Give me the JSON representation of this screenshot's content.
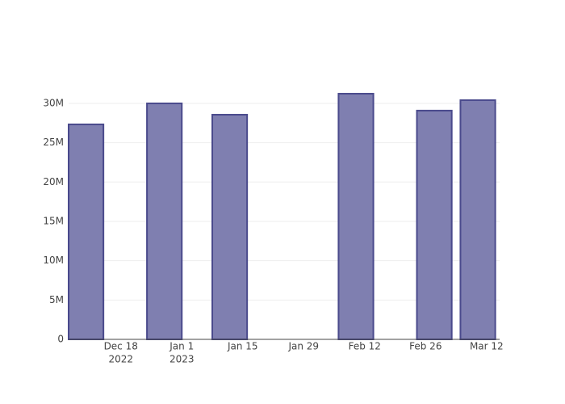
{
  "chart_data": {
    "type": "bar",
    "x": [
      "2022-12-10",
      "2022-12-28",
      "2023-01-12",
      "2023-02-10",
      "2023-02-28",
      "2023-03-10"
    ],
    "values": [
      27330000,
      30000000,
      28560000,
      31230000,
      29080000,
      30410000
    ],
    "color": "#7f7fb0",
    "line_color": "#4a4a8c",
    "xlim": [
      "2022-12-06",
      "2023-03-15"
    ],
    "xticks": [
      {
        "value": "2022-12-18",
        "label": [
          "Dec 18",
          "2022"
        ]
      },
      {
        "value": "2023-01-01",
        "label": [
          "Jan 1",
          "2023"
        ]
      },
      {
        "value": "2023-01-15",
        "label": [
          "Jan 15"
        ]
      },
      {
        "value": "2023-01-29",
        "label": [
          "Jan 29"
        ]
      },
      {
        "value": "2023-02-12",
        "label": [
          "Feb 12"
        ]
      },
      {
        "value": "2023-02-26",
        "label": [
          "Feb 26"
        ]
      },
      {
        "value": "2023-03-12",
        "label": [
          "Mar 12"
        ]
      }
    ],
    "ylim": [
      0,
      32870000
    ],
    "yticks": [
      0,
      {
        "value": 5000000,
        "label": "5M"
      },
      {
        "value": 10000000,
        "label": "10M"
      },
      {
        "value": 15000000,
        "label": "15M"
      },
      {
        "value": 20000000,
        "label": "20M"
      },
      {
        "value": 25000000,
        "label": "25M"
      },
      {
        "value": 30000000,
        "label": "30M"
      }
    ],
    "grid": true
  }
}
